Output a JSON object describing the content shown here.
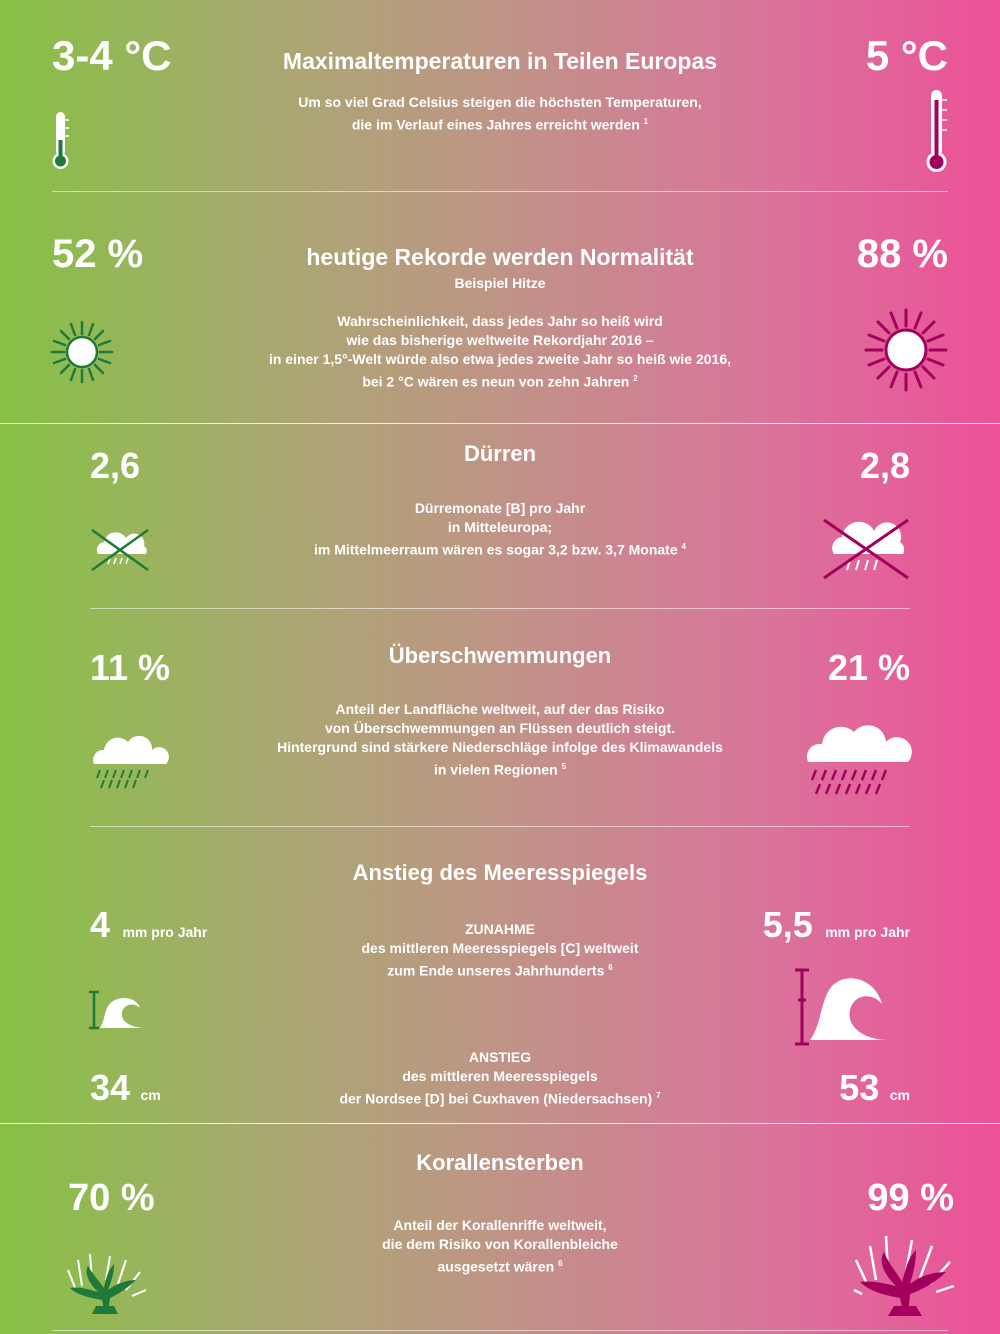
{
  "colors": {
    "green": "#1f7a3a",
    "magenta": "#a3005e",
    "white": "#ffffff"
  },
  "temperature": {
    "title": "Maximaltemperaturen in Teilen Europas",
    "desc1": "Um so viel Grad Celsius steigen die höchsten Temperaturen,",
    "desc2": "die im Verlauf eines Jahres erreicht werden",
    "footnote": "1",
    "left_value": "3-4 °C",
    "right_value": "5 °C",
    "left_icon": "thermometer-icon",
    "right_icon": "thermometer-icon"
  },
  "records": {
    "title": "heutige Rekorde werden Normalität",
    "subtitle": "Beispiel Hitze",
    "desc1": "Wahrscheinlichkeit, dass jedes Jahr so heiß wird",
    "desc2": "wie das bisherige weltweite Rekordjahr 2016 –",
    "desc3": "in einer 1,5°-Welt würde also etwa jedes zweite Jahr so heiß wie 2016,",
    "desc4": "bei 2 °C wären es neun von zehn Jahren",
    "footnote": "2",
    "left_value": "52 %",
    "right_value": "88 %",
    "left_icon": "sun-icon",
    "right_icon": "sun-icon"
  },
  "droughts": {
    "title": "Dürren",
    "desc1": "Dürremonate [B] pro Jahr",
    "desc2": "in Mitteleuropa;",
    "desc3": "im Mittelmeerraum wären es sogar 3,2 bzw. 3,7 Monate",
    "footnote": "4",
    "left_value": "2,6",
    "right_value": "2,8",
    "left_icon": "crossed-rain-cloud-icon",
    "right_icon": "crossed-rain-cloud-icon"
  },
  "floods": {
    "title": "Überschwemmungen",
    "desc1": "Anteil der Landfläche weltweit, auf der das Risiko",
    "desc2": "von Überschwemmungen an Flüssen deutlich steigt.",
    "desc3": "Hintergrund sind stärkere Niederschläge infolge des Klimawandels",
    "desc4": "in vielen Regionen",
    "footnote": "5",
    "left_value": "11 %",
    "right_value": "21 %",
    "left_icon": "rain-cloud-icon",
    "right_icon": "rain-cloud-icon"
  },
  "sealevel": {
    "title": "Anstieg des Meeresspiegels",
    "increase_heading": "ZUNAHME",
    "increase_desc1": "des mittleren Meeresspiegels [C] weltweit",
    "increase_desc2": "zum Ende unseres Jahrhunderts",
    "increase_footnote": "6",
    "left_rate": "4",
    "left_rate_unit": "mm pro Jahr",
    "right_rate": "5,5",
    "right_rate_unit": "mm pro Jahr",
    "rise_heading": "ANSTIEG",
    "rise_desc1": "des mittleren Meeresspiegels",
    "rise_desc2": "der Nordsee [D] bei Cuxhaven (Niedersachsen)",
    "rise_footnote": "7",
    "left_rise": "34",
    "left_rise_unit": "cm",
    "right_rise": "53",
    "right_rise_unit": "cm",
    "left_icon": "wave-icon",
    "right_icon": "wave-icon"
  },
  "corals": {
    "title": "Korallensterben",
    "desc1": "Anteil der Korallenriffe weltweit,",
    "desc2": "die dem Risiko von Korallenbleiche",
    "desc3": "ausgesetzt wären",
    "footnote": "6",
    "left_value": "70 %",
    "right_value": "99 %",
    "left_icon": "coral-icon",
    "right_icon": "coral-icon"
  }
}
